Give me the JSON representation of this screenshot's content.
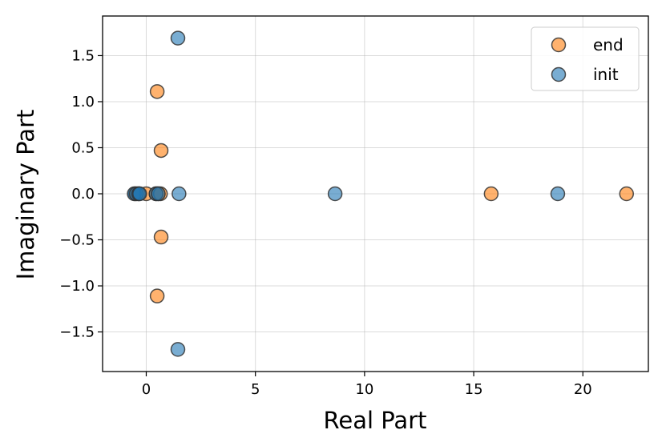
{
  "chart_data": {
    "type": "scatter",
    "xlabel": "Real Part",
    "ylabel": "Imaginary Part",
    "xlim": [
      -2,
      23
    ],
    "ylim": [
      -1.93,
      1.93
    ],
    "xticks": [
      0,
      5,
      10,
      15,
      20
    ],
    "yticks": [
      -1.5,
      -1.0,
      -0.5,
      0.0,
      0.5,
      1.0,
      1.5
    ],
    "xtick_labels": [
      "0",
      "5",
      "10",
      "15",
      "20"
    ],
    "ytick_labels": [
      "−1.5",
      "−1.0",
      "−0.5",
      "0.0",
      "0.5",
      "1.0",
      "1.5"
    ],
    "grid": true,
    "legend_position": "top-right",
    "series": [
      {
        "name": "end",
        "color": "#ff7f0e",
        "points": [
          {
            "x": -0.5,
            "y": 0.0
          },
          {
            "x": -0.35,
            "y": 0.0
          },
          {
            "x": 0.0,
            "y": 0.0
          },
          {
            "x": 0.45,
            "y": 0.0
          },
          {
            "x": 0.55,
            "y": 0.0
          },
          {
            "x": 0.65,
            "y": 0.0
          },
          {
            "x": 0.5,
            "y": 1.11
          },
          {
            "x": 0.5,
            "y": -1.11
          },
          {
            "x": 0.68,
            "y": 0.47
          },
          {
            "x": 0.68,
            "y": -0.47
          },
          {
            "x": 15.8,
            "y": 0.0
          },
          {
            "x": 22.0,
            "y": 0.0
          }
        ]
      },
      {
        "name": "init",
        "color": "#1f77b4",
        "points": [
          {
            "x": -0.55,
            "y": 0.0
          },
          {
            "x": -0.45,
            "y": 0.0
          },
          {
            "x": -0.35,
            "y": 0.0
          },
          {
            "x": -0.3,
            "y": 0.0
          },
          {
            "x": 0.45,
            "y": 0.0
          },
          {
            "x": 0.55,
            "y": 0.0
          },
          {
            "x": 1.45,
            "y": 1.69
          },
          {
            "x": 1.45,
            "y": -1.69
          },
          {
            "x": 1.5,
            "y": 0.0
          },
          {
            "x": 8.65,
            "y": 0.0
          },
          {
            "x": 18.85,
            "y": 0.0
          }
        ]
      }
    ]
  }
}
